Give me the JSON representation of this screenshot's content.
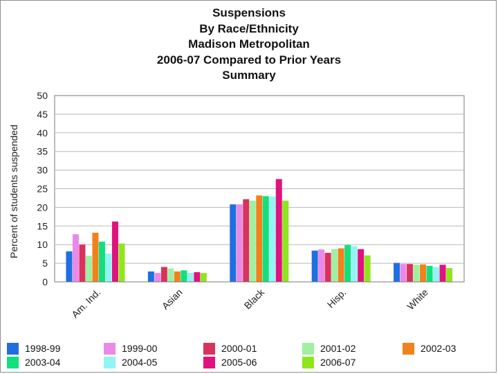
{
  "title_lines": [
    "Suspensions",
    "By Race/Ethnicity",
    "Madison Metropolitan",
    "2006-07 Compared to Prior Years",
    "Summary"
  ],
  "chart_data": {
    "type": "bar",
    "title": "Suspensions By Race/Ethnicity Madison Metropolitan 2006-07 Compared to Prior Years Summary",
    "xlabel": "",
    "ylabel": "Percent of students suspended",
    "ylim": [
      0,
      50
    ],
    "yticks": [
      0,
      5,
      10,
      15,
      20,
      25,
      30,
      35,
      40,
      45,
      50
    ],
    "grid": true,
    "legend_position": "bottom",
    "categories": [
      "Am. Ind.",
      "Asian",
      "Black",
      "Hisp.",
      "White"
    ],
    "series": [
      {
        "name": "1998-99",
        "color": "#1f6fe0",
        "values": [
          8.2,
          2.8,
          20.8,
          8.4,
          5.1
        ]
      },
      {
        "name": "1999-00",
        "color": "#e98ae8",
        "values": [
          12.8,
          2.4,
          20.8,
          8.7,
          4.8
        ]
      },
      {
        "name": "2000-01",
        "color": "#d8335c",
        "values": [
          10.0,
          4.0,
          22.2,
          7.8,
          4.8
        ]
      },
      {
        "name": "2001-02",
        "color": "#9ff0a0",
        "values": [
          7.0,
          3.6,
          21.8,
          8.8,
          4.6
        ]
      },
      {
        "name": "2002-03",
        "color": "#f0821d",
        "values": [
          13.2,
          2.8,
          23.2,
          9.0,
          4.7
        ]
      },
      {
        "name": "2003-04",
        "color": "#12e07d",
        "values": [
          10.8,
          3.1,
          23.0,
          9.9,
          4.3
        ]
      },
      {
        "name": "2004-05",
        "color": "#93f4f4",
        "values": [
          7.6,
          2.4,
          22.9,
          9.6,
          4.0
        ]
      },
      {
        "name": "2005-06",
        "color": "#e0127e",
        "values": [
          16.2,
          2.6,
          27.6,
          8.8,
          4.6
        ]
      },
      {
        "name": "2006-07",
        "color": "#8fe61d",
        "values": [
          10.3,
          2.4,
          21.8,
          7.1,
          3.7
        ]
      }
    ]
  }
}
